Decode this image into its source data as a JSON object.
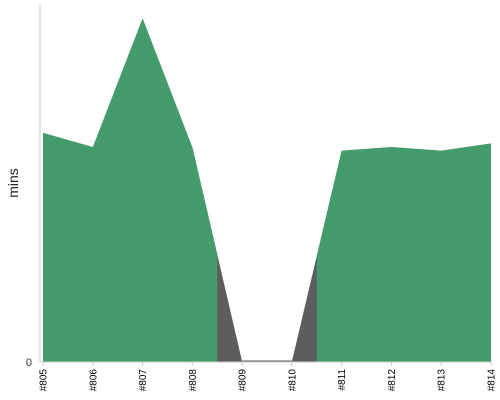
{
  "chart_data": {
    "type": "area",
    "title": "",
    "xlabel": "",
    "ylabel": "mins",
    "categories": [
      "#805",
      "#806",
      "#807",
      "#808",
      "#809",
      "#810",
      "#811",
      "#812",
      "#813",
      "#814"
    ],
    "y_tick_labels": [
      "0"
    ],
    "ylim": [
      0,
      1.0
    ],
    "grid": false,
    "series": [
      {
        "values": [
          0.64,
          0.6,
          0.96,
          0.6,
          0.0,
          0.0,
          0.59,
          0.6,
          0.59,
          0.61
        ]
      }
    ],
    "colors": {
      "fill": "#449c6d",
      "failure_fill": "#5d5d5d",
      "axis": "#cccccc"
    }
  }
}
